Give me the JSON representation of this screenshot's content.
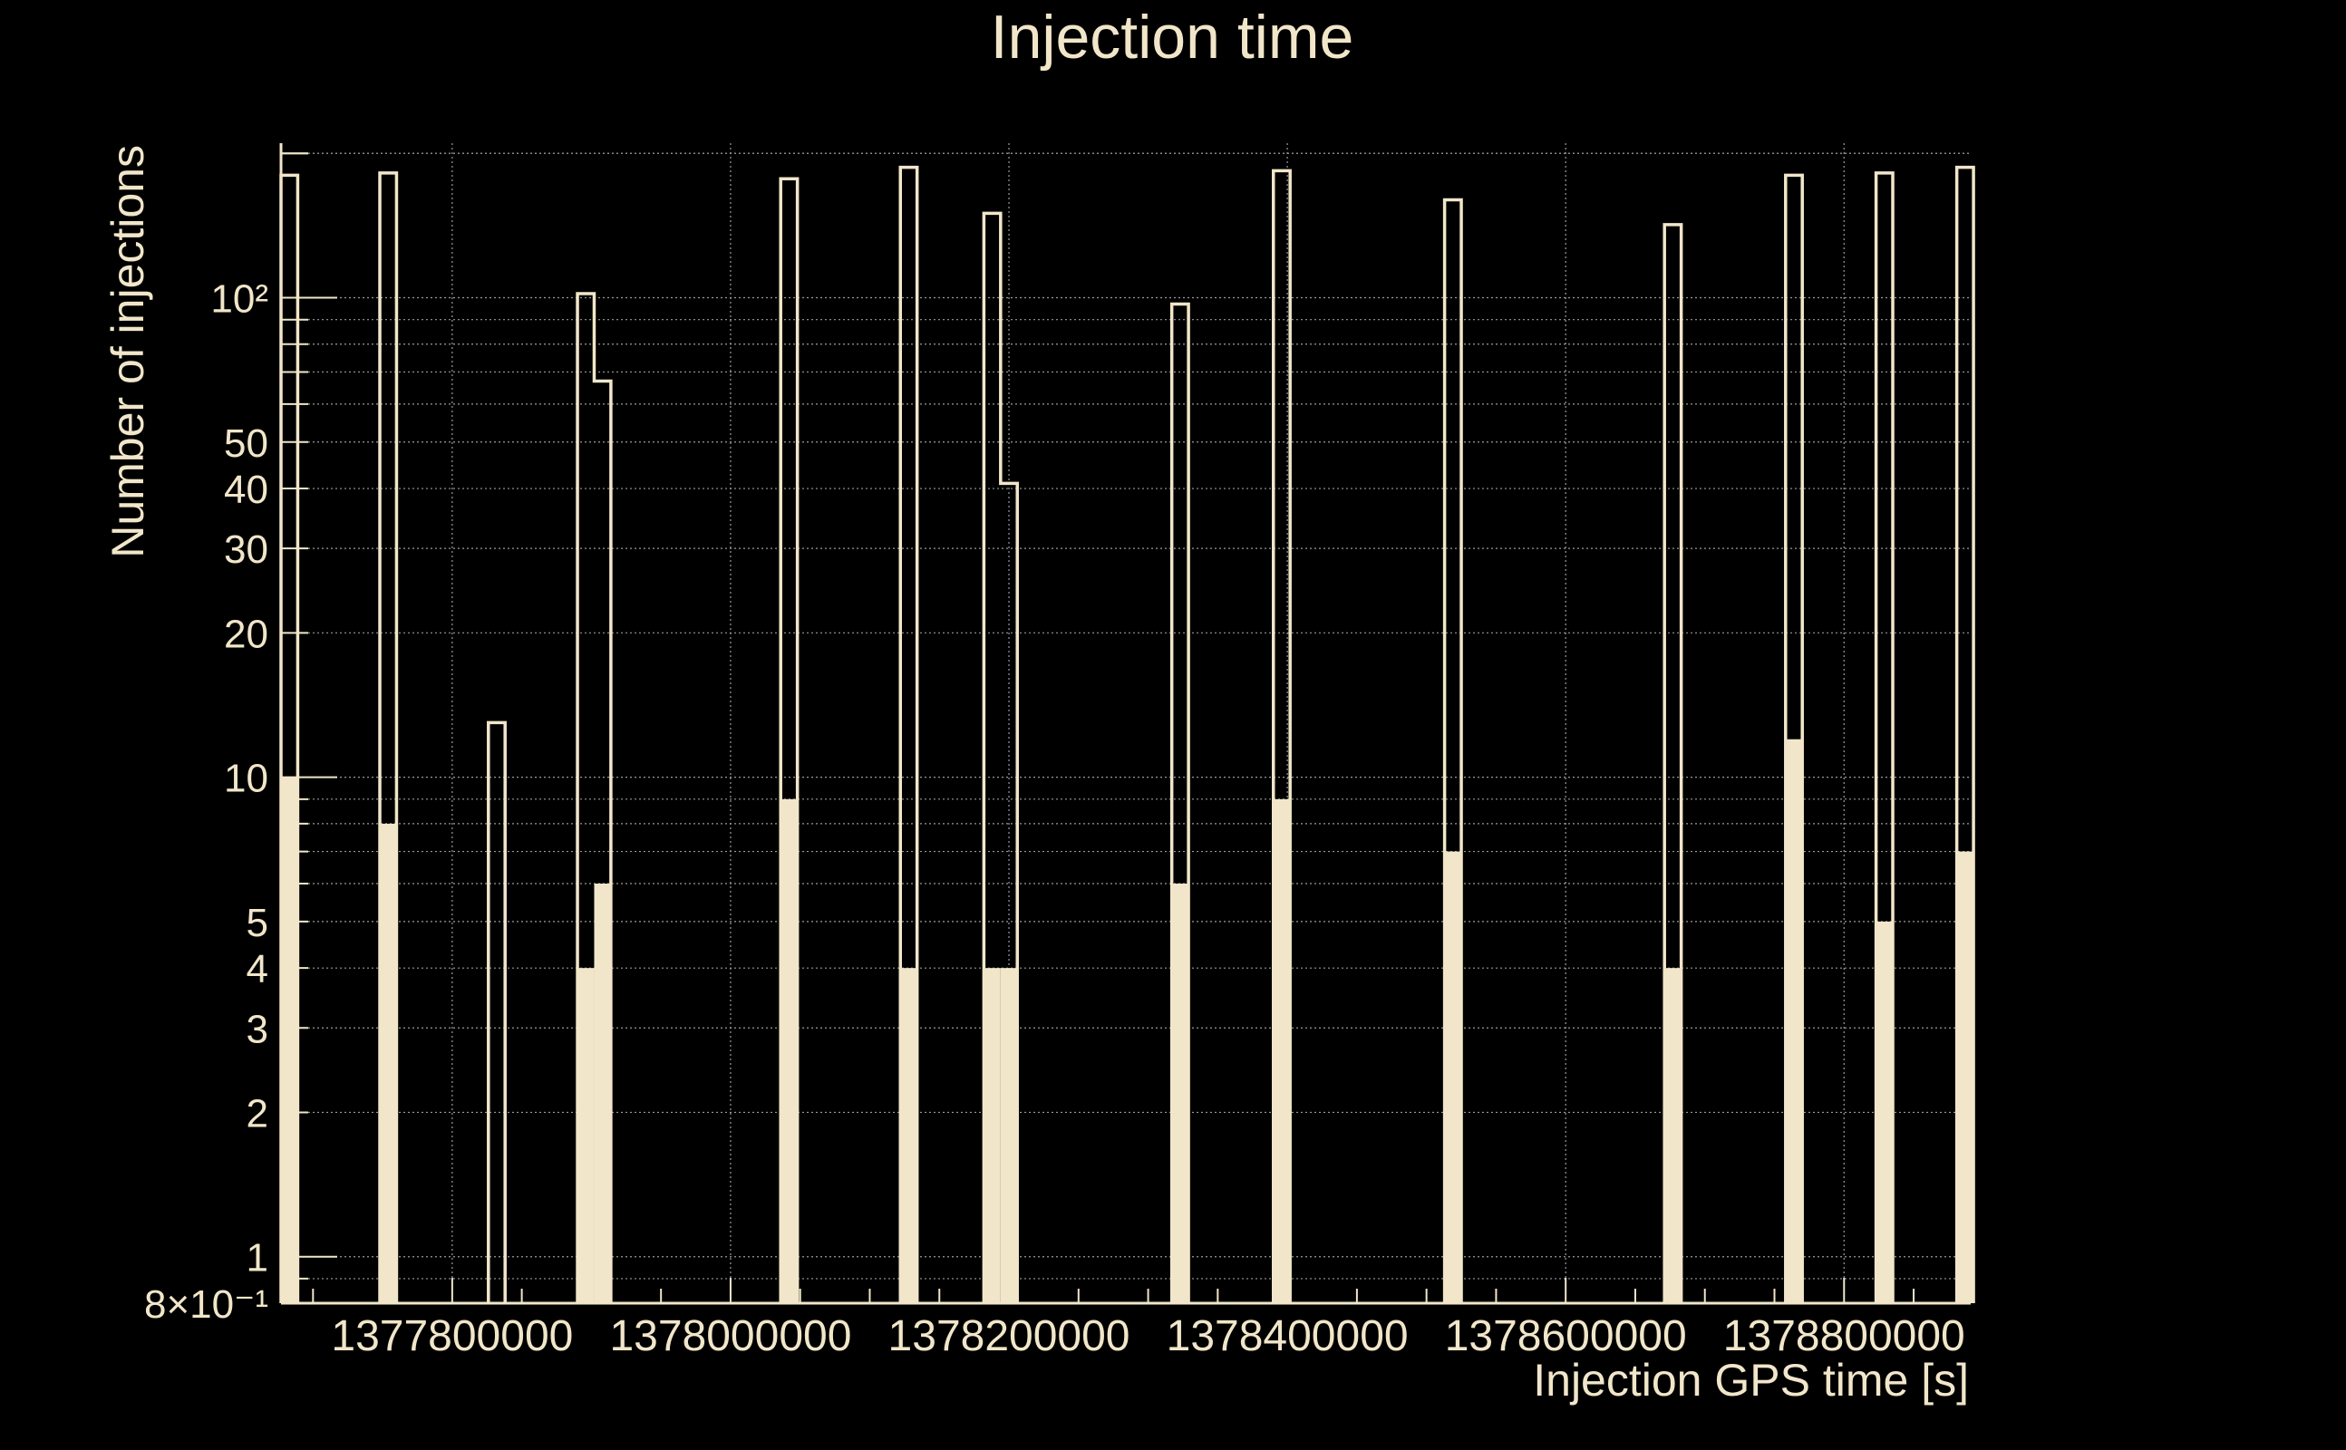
{
  "chart_data": {
    "type": "bar",
    "title": "Injection time",
    "xlabel": "Injection GPS time [s]",
    "ylabel": "Number of injections",
    "yscale": "log",
    "xlim": [
      1377677000,
      1378891000
    ],
    "ylim": [
      0.8,
      210
    ],
    "grid": true,
    "x_tick_labels": [
      {
        "value": 1377800000,
        "label": "1377800000"
      },
      {
        "value": 1378000000,
        "label": "1378000000"
      },
      {
        "value": 1378200000,
        "label": "1378200000"
      },
      {
        "value": 1378400000,
        "label": "1378400000"
      },
      {
        "value": 1378600000,
        "label": "1378600000"
      },
      {
        "value": 1378800000,
        "label": "1378800000"
      }
    ],
    "y_tick_labels": [
      {
        "value": 0.8,
        "label": "8×10⁻¹"
      },
      {
        "value": 1,
        "label": "1"
      },
      {
        "value": 2,
        "label": "2"
      },
      {
        "value": 3,
        "label": "3"
      },
      {
        "value": 4,
        "label": "4"
      },
      {
        "value": 5,
        "label": "5"
      },
      {
        "value": 10,
        "label": "10"
      },
      {
        "value": 20,
        "label": "20"
      },
      {
        "value": 30,
        "label": "30"
      },
      {
        "value": 40,
        "label": "40"
      },
      {
        "value": 50,
        "label": "50"
      },
      {
        "value": 100,
        "label": "10²"
      }
    ],
    "bin_width": 12000,
    "series": [
      {
        "style": "outline",
        "bins": [
          {
            "x": 1377677000,
            "value": 180
          },
          {
            "x": 1377748000,
            "value": 182
          },
          {
            "x": 1377826000,
            "value": 13
          },
          {
            "x": 1377890000,
            "value": 102
          },
          {
            "x": 1377902000,
            "value": 67
          },
          {
            "x": 1378036000,
            "value": 177
          },
          {
            "x": 1378122000,
            "value": 187
          },
          {
            "x": 1378182000,
            "value": 150
          },
          {
            "x": 1378194000,
            "value": 41
          },
          {
            "x": 1378317000,
            "value": 97
          },
          {
            "x": 1378390000,
            "value": 184
          },
          {
            "x": 1378513000,
            "value": 160
          },
          {
            "x": 1378671000,
            "value": 142
          },
          {
            "x": 1378758000,
            "value": 180
          },
          {
            "x": 1378823000,
            "value": 182
          },
          {
            "x": 1378881000,
            "value": 187
          }
        ]
      },
      {
        "style": "filled",
        "bins": [
          {
            "x": 1377677000,
            "value": 10
          },
          {
            "x": 1377748000,
            "value": 8
          },
          {
            "x": 1377890000,
            "value": 4
          },
          {
            "x": 1377902000,
            "value": 6
          },
          {
            "x": 1378036000,
            "value": 9
          },
          {
            "x": 1378122000,
            "value": 4
          },
          {
            "x": 1378182000,
            "value": 4
          },
          {
            "x": 1378194000,
            "value": 4
          },
          {
            "x": 1378317000,
            "value": 6
          },
          {
            "x": 1378390000,
            "value": 9
          },
          {
            "x": 1378513000,
            "value": 7
          },
          {
            "x": 1378671000,
            "value": 4
          },
          {
            "x": 1378758000,
            "value": 12
          },
          {
            "x": 1378823000,
            "value": 5
          },
          {
            "x": 1378881000,
            "value": 7
          }
        ]
      }
    ],
    "colors": {
      "background": "#000000",
      "foreground": "#f1e6c9",
      "grid": "#9a9a9a"
    }
  }
}
